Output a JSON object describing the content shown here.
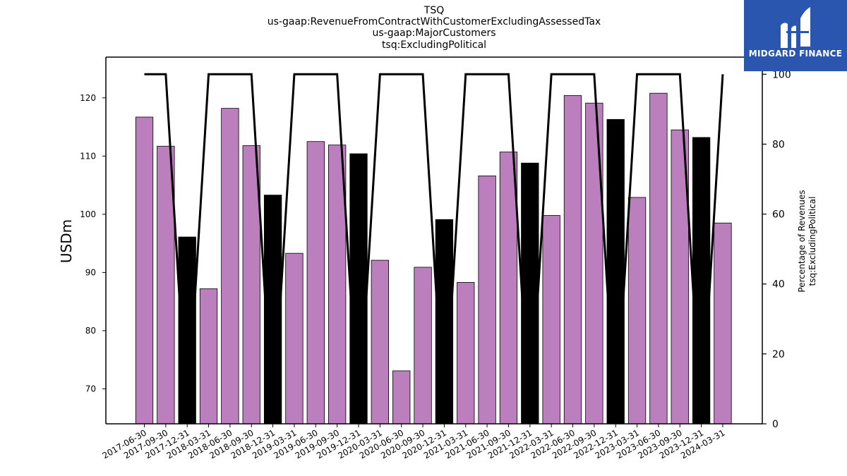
{
  "chart_data": {
    "type": "bar",
    "title_lines": [
      "TSQ",
      "us-gaap:RevenueFromContractWithCustomerExcludingAssessedTax",
      "us-gaap:MajorCustomers",
      "tsq:ExcludingPolitical"
    ],
    "ylabel": "USDm",
    "y2label_lines": [
      "Percentage of Revenues",
      "tsq:ExcludingPolitical"
    ],
    "ylim": [
      64,
      127
    ],
    "yticks": [
      70,
      80,
      90,
      100,
      110,
      120
    ],
    "y2lim": [
      0,
      104.9
    ],
    "y2ticks": [
      0,
      20,
      40,
      60,
      80,
      100
    ],
    "categories": [
      "2017-06-30",
      "2017-09-30",
      "2017-12-31",
      "2018-03-31",
      "2018-06-30",
      "2018-09-30",
      "2018-12-31",
      "2019-03-31",
      "2019-06-30",
      "2019-09-30",
      "2019-12-31",
      "2020-03-31",
      "2020-06-30",
      "2020-09-30",
      "2020-12-31",
      "2021-03-31",
      "2021-06-30",
      "2021-09-30",
      "2021-12-31",
      "2022-03-31",
      "2022-06-30",
      "2022-09-30",
      "2022-12-31",
      "2023-03-31",
      "2023-06-30",
      "2023-09-30",
      "2023-12-31",
      "2024-03-31"
    ],
    "values": [
      116.7,
      111.7,
      96.1,
      87.2,
      118.2,
      111.8,
      103.3,
      93.3,
      112.5,
      111.9,
      110.4,
      92.1,
      73.1,
      90.9,
      99.1,
      88.3,
      106.6,
      110.7,
      108.8,
      99.8,
      120.4,
      119.1,
      116.3,
      102.9,
      120.8,
      114.5,
      113.2,
      98.5
    ],
    "bar_colors": [
      "#bb7fbd",
      "#bb7fbd",
      "#000000",
      "#bb7fbd",
      "#bb7fbd",
      "#bb7fbd",
      "#000000",
      "#bb7fbd",
      "#bb7fbd",
      "#bb7fbd",
      "#000000",
      "#bb7fbd",
      "#bb7fbd",
      "#bb7fbd",
      "#000000",
      "#bb7fbd",
      "#bb7fbd",
      "#bb7fbd",
      "#000000",
      "#bb7fbd",
      "#bb7fbd",
      "#bb7fbd",
      "#000000",
      "#bb7fbd",
      "#bb7fbd",
      "#bb7fbd",
      "#000000",
      "#bb7fbd"
    ],
    "line_values": [
      100,
      100,
      0,
      100,
      100,
      100,
      0,
      100,
      100,
      100,
      0,
      100,
      100,
      100,
      0,
      100,
      100,
      100,
      0,
      100,
      100,
      100,
      0,
      100,
      100,
      100,
      0,
      100
    ],
    "line_color": "#000000",
    "grid": false
  },
  "logo": {
    "text": "MIDGARD FINANCE",
    "bg_color": "#2b56b0"
  }
}
